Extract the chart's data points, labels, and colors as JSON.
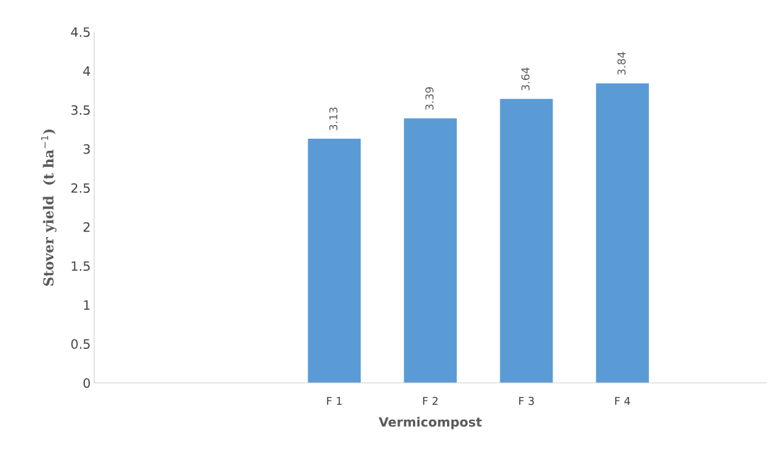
{
  "chart_data": {
    "type": "bar",
    "categories": [
      null,
      null,
      "F 1",
      "F 2",
      "F 3",
      "F 4",
      null
    ],
    "values": [
      null,
      null,
      3.13,
      3.39,
      3.64,
      3.84,
      null
    ],
    "color": "#5b9bd5",
    "xlabel": "Vermicompost",
    "ylabel": "Stover yield  (t ha$^{−1}$)",
    "ylim": [
      0,
      4.5
    ],
    "yticks": [
      0,
      0.5,
      1,
      1.5,
      2,
      2.5,
      3,
      3.5,
      4,
      4.5
    ],
    "data_labels": true,
    "grid": false,
    "legend": false
  }
}
